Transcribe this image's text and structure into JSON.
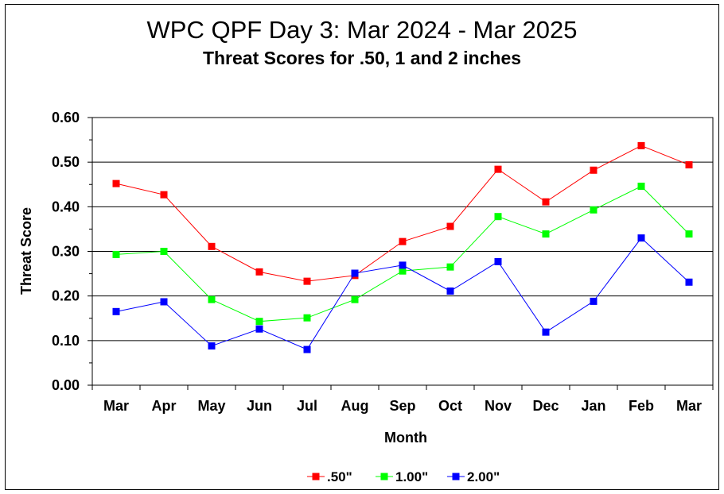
{
  "chart_data": {
    "type": "line",
    "title": "WPC QPF Day 3:  Mar 2024 - Mar 2025",
    "subtitle": "Threat Scores for .50, 1 and 2 inches",
    "xlabel": "Month",
    "ylabel": "Threat Score",
    "ylim": [
      0,
      0.6
    ],
    "yticks": [
      "0.00",
      "0.10",
      "0.20",
      "0.30",
      "0.40",
      "0.50",
      "0.60"
    ],
    "grid": "horizontal",
    "legend_position": "bottom",
    "categories": [
      "Mar",
      "Apr",
      "May",
      "Jun",
      "Jul",
      "Aug",
      "Sep",
      "Oct",
      "Nov",
      "Dec",
      "Jan",
      "Feb",
      "Mar"
    ],
    "series": [
      {
        "name": ".50\"",
        "color": "#ff0000",
        "values": [
          0.452,
          0.427,
          0.311,
          0.254,
          0.233,
          0.246,
          0.322,
          0.356,
          0.484,
          0.411,
          0.482,
          0.537,
          0.494
        ]
      },
      {
        "name": "1.00\"",
        "color": "#00ff00",
        "values": [
          0.293,
          0.3,
          0.192,
          0.143,
          0.151,
          0.192,
          0.256,
          0.265,
          0.378,
          0.339,
          0.393,
          0.446,
          0.339
        ]
      },
      {
        "name": "2.00\"",
        "color": "#0000ff",
        "values": [
          0.165,
          0.187,
          0.088,
          0.126,
          0.08,
          0.251,
          0.269,
          0.211,
          0.277,
          0.119,
          0.188,
          0.33,
          0.231
        ]
      }
    ]
  }
}
